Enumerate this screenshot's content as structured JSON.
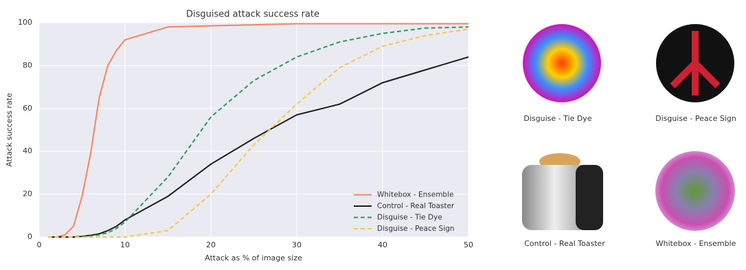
{
  "chart_data": {
    "type": "line",
    "title": "Disguised attack success rate",
    "xlabel": "Attack as % of image size",
    "ylabel": "Attack success rate",
    "x": [
      1,
      2,
      3,
      4,
      5,
      6,
      7,
      8,
      9,
      10,
      15,
      20,
      25,
      30,
      35,
      40,
      45,
      50
    ],
    "series": [
      {
        "name": "Whitebox - Ensemble",
        "color": "#f4845f",
        "linestyle": "solid",
        "values": [
          0,
          0,
          1,
          5,
          19,
          39,
          65,
          80,
          87,
          92,
          98,
          98.5,
          99,
          99.5,
          99.5,
          99.5,
          99.5,
          99.5
        ]
      },
      {
        "name": "Control - Real Toaster",
        "color": "#1b1b1b",
        "linestyle": "solid",
        "values": [
          0,
          0,
          0,
          0,
          0.3,
          0.8,
          1.5,
          3,
          5,
          8,
          19,
          34,
          46,
          57,
          62,
          72,
          78,
          84
        ]
      },
      {
        "name": "Disguise - Tie Dye",
        "color": "#2a9a57",
        "linestyle": "dashed",
        "values": [
          0,
          0,
          0,
          0,
          0,
          0.5,
          1,
          2,
          4,
          7,
          28,
          56,
          73,
          84,
          91,
          95,
          97.5,
          98
        ]
      },
      {
        "name": "Disguise - Peace Sign",
        "color": "#f7c548",
        "linestyle": "dashed",
        "values": [
          0,
          0,
          0,
          0,
          0,
          0,
          0,
          0,
          0,
          0,
          3,
          20,
          43,
          62,
          79,
          89,
          94,
          97
        ]
      }
    ],
    "xlim": [
      0,
      50
    ],
    "xticks": [
      0,
      10,
      20,
      30,
      40,
      50
    ],
    "ylim": [
      0,
      100
    ],
    "yticks": [
      0,
      20,
      40,
      60,
      80,
      100
    ],
    "grid": true,
    "legend": "lower right"
  },
  "images": [
    {
      "caption": "Disguise - Tie Dye"
    },
    {
      "caption": "Disguise - Peace Sign"
    },
    {
      "caption": "Control - Real Toaster"
    },
    {
      "caption": "Whitebox - Ensemble"
    }
  ]
}
